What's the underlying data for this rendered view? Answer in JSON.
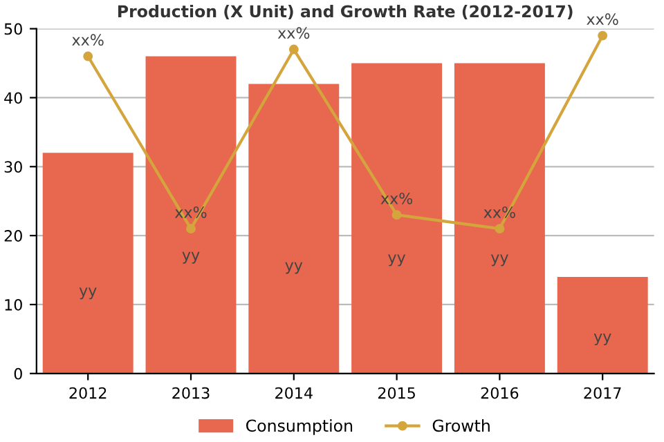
{
  "chart_data": {
    "type": "bar",
    "title": "Production (X Unit) and Growth Rate (2012-2017)",
    "categories": [
      "2012",
      "2013",
      "2014",
      "2015",
      "2016",
      "2017"
    ],
    "series": [
      {
        "name": "Consumption",
        "color": "#e8674f",
        "values": [
          32,
          46,
          42,
          45,
          45,
          14
        ],
        "value_labels": [
          "yy",
          "yy",
          "yy",
          "yy",
          "yy",
          "yy"
        ]
      },
      {
        "name": "Growth",
        "type": "line",
        "color": "#d4a53c",
        "marker": "circle",
        "values": [
          46,
          21,
          47,
          23,
          21,
          49
        ],
        "value_labels": [
          "xx%",
          "xx%",
          "xx%",
          "xx%",
          "xx%",
          "xx%"
        ]
      }
    ],
    "ylim": [
      0,
      50
    ],
    "yticks": [
      0,
      10,
      20,
      30,
      40,
      50
    ],
    "grid": "y",
    "legend": "bottom"
  }
}
